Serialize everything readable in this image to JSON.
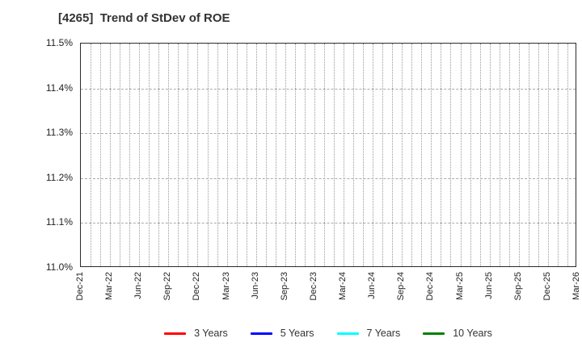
{
  "chart_data": {
    "type": "line",
    "title": "[4265]  Trend of StDev of ROE",
    "x_labels": [
      "Dec-21",
      "Mar-22",
      "Jun-22",
      "Sep-22",
      "Dec-22",
      "Mar-23",
      "Jun-23",
      "Sep-23",
      "Dec-23",
      "Mar-24",
      "Jun-24",
      "Sep-24",
      "Dec-24",
      "Mar-25",
      "Jun-25",
      "Sep-25",
      "Dec-25",
      "Mar-26"
    ],
    "x_months_total": 51,
    "y_tick_labels": [
      "11.0%",
      "11.1%",
      "11.2%",
      "11.3%",
      "11.4%",
      "11.5%"
    ],
    "y_tick_values": [
      11.0,
      11.1,
      11.2,
      11.3,
      11.4,
      11.5
    ],
    "ylim": [
      11.0,
      11.5
    ],
    "series": [
      {
        "name": "3 Years",
        "color": "#ff0000",
        "values": []
      },
      {
        "name": "5 Years",
        "color": "#0000ff",
        "values": []
      },
      {
        "name": "7 Years",
        "color": "#00ffff",
        "values": []
      },
      {
        "name": "10 Years",
        "color": "#008000",
        "values": []
      }
    ],
    "legend_position": "bottom",
    "grid": {
      "vertical": "dotted-monthly",
      "horizontal": "dashed-at-ticks"
    }
  }
}
